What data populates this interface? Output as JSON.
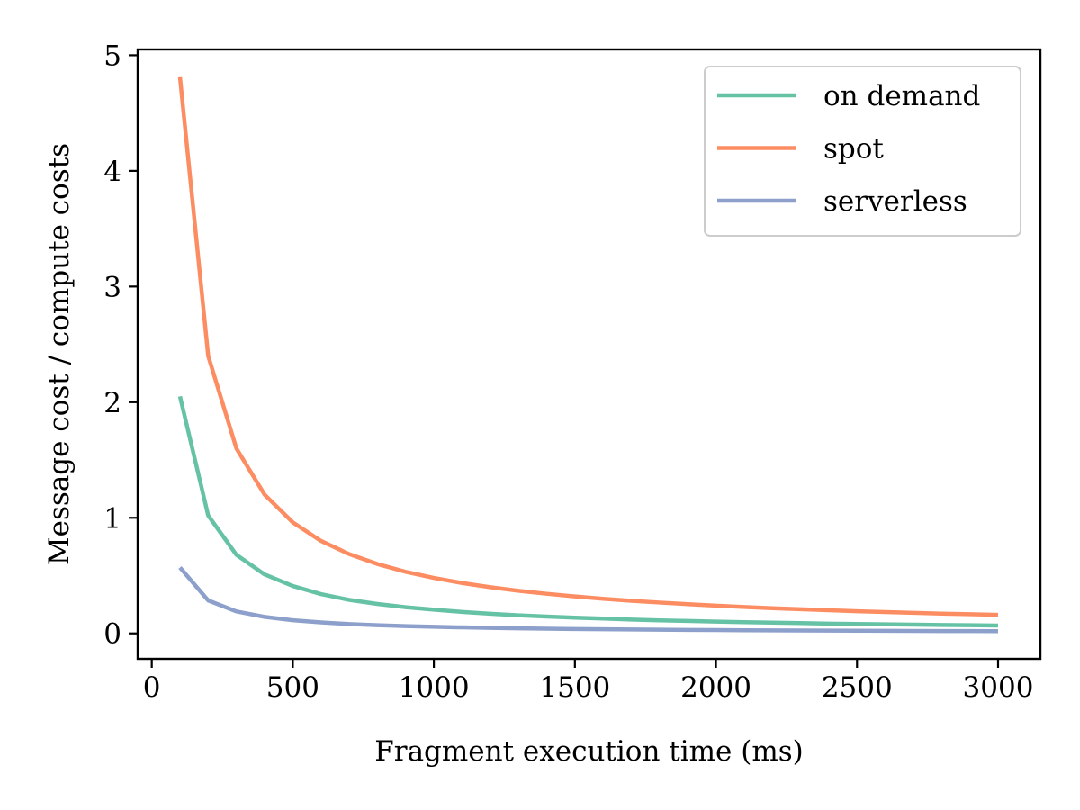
{
  "chart_data": {
    "type": "line",
    "title": "",
    "xlabel": "Fragment execution time (ms)",
    "ylabel": "Message cost / compute costs",
    "xlim": [
      -50,
      3150
    ],
    "ylim": [
      -0.22,
      5.05
    ],
    "xticks": [
      0,
      500,
      1000,
      1500,
      2000,
      2500,
      3000
    ],
    "yticks": [
      0,
      1,
      2,
      3,
      4,
      5
    ],
    "xtick_labels": [
      "0",
      "500",
      "1000",
      "1500",
      "2000",
      "2500",
      "3000"
    ],
    "ytick_labels": [
      "0",
      "1",
      "2",
      "3",
      "4",
      "5"
    ],
    "grid": false,
    "legend_position": "top-right",
    "x": [
      100,
      200,
      300,
      400,
      500,
      600,
      700,
      800,
      900,
      1000,
      1100,
      1200,
      1300,
      1400,
      1500,
      1600,
      1700,
      1800,
      1900,
      2000,
      2100,
      2200,
      2300,
      2400,
      2500,
      2600,
      2700,
      2800,
      2900,
      3000
    ],
    "series": [
      {
        "name": "on demand",
        "color": "#66c2a5",
        "values": [
          2.05,
          1.02,
          0.68,
          0.51,
          0.41,
          0.34,
          0.29,
          0.255,
          0.227,
          0.205,
          0.186,
          0.17,
          0.157,
          0.146,
          0.136,
          0.128,
          0.12,
          0.113,
          0.108,
          0.102,
          0.097,
          0.093,
          0.089,
          0.085,
          0.082,
          0.079,
          0.076,
          0.073,
          0.071,
          0.068
        ]
      },
      {
        "name": "spot",
        "color": "#fc8d62",
        "values": [
          4.81,
          2.4,
          1.6,
          1.2,
          0.96,
          0.8,
          0.686,
          0.6,
          0.533,
          0.48,
          0.436,
          0.4,
          0.369,
          0.343,
          0.32,
          0.3,
          0.282,
          0.267,
          0.253,
          0.24,
          0.229,
          0.218,
          0.209,
          0.2,
          0.192,
          0.185,
          0.178,
          0.171,
          0.166,
          0.16
        ]
      },
      {
        "name": "serverless",
        "color": "#8da0cb",
        "values": [
          0.57,
          0.285,
          0.19,
          0.143,
          0.114,
          0.095,
          0.081,
          0.071,
          0.063,
          0.057,
          0.052,
          0.048,
          0.044,
          0.041,
          0.038,
          0.036,
          0.034,
          0.032,
          0.03,
          0.029,
          0.027,
          0.026,
          0.025,
          0.024,
          0.023,
          0.022,
          0.021,
          0.02,
          0.02,
          0.019
        ]
      }
    ]
  }
}
